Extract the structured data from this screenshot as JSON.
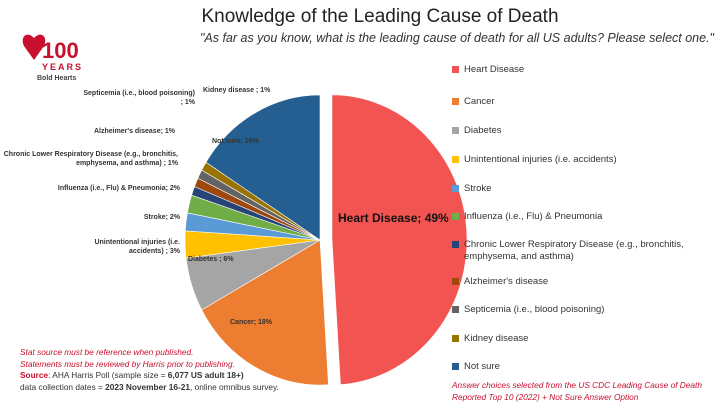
{
  "chart_data": {
    "type": "pie",
    "title": "Knowledge of the Leading Cause of Death",
    "subtitle": "\"As far as you know, what is the leading cause of death for all US adults? Please select one.\"",
    "unit": "%",
    "legend_position": "right",
    "slices": [
      {
        "name": "Heart Disease",
        "label": "Heart Disease; 49%",
        "value": 49,
        "color": "#f25451",
        "exploded": true
      },
      {
        "name": "Cancer",
        "label": "Cancer; 18%",
        "value": 18,
        "color": "#ed7d31"
      },
      {
        "name": "Diabetes",
        "label": "Diabetes ; 6%",
        "value": 6,
        "color": "#a5a5a5"
      },
      {
        "name": "Unintentional injuries (i.e. accidents)",
        "label": "Unintentional injuries (i.e. accidents) ; 3%",
        "value": 3,
        "color": "#ffc000"
      },
      {
        "name": "Stroke",
        "label": "Stroke; 2%",
        "value": 2,
        "color": "#5b9bd5"
      },
      {
        "name": "Influenza (i.e., Flu) & Pneumonia",
        "label": "Influenza (i.e., Flu) & Pneumonia; 2%",
        "value": 2,
        "color": "#70ad47"
      },
      {
        "name": "Chronic Lower Respiratory Disease (e.g., bronchitis, emphysema, and asthma)",
        "label": "Chronic Lower Respiratory Disease (e.g., bronchitis, emphysema, and asthma) ; 1%",
        "value": 1,
        "color": "#264478"
      },
      {
        "name": "Alzheimer's disease",
        "label": "Alzheimer's disease; 1%",
        "value": 1,
        "color": "#9e480e"
      },
      {
        "name": "Septicemia (i.e., blood poisoning)",
        "label": "Septicemia (i.e., blood poisoning) ; 1%",
        "value": 1,
        "color": "#636363"
      },
      {
        "name": "Kidney disease",
        "label": "Kidney disease ; 1%",
        "value": 1,
        "color": "#997300"
      },
      {
        "name": "Not sure",
        "label": "Not sure; 16%",
        "value": 16,
        "color": "#255e91"
      }
    ]
  },
  "logo": {
    "text_top": "American Heart Association",
    "number": "100",
    "years": "YEARS",
    "tagline": "Bold Hearts",
    "color": "#c8102e"
  },
  "notes": {
    "line1": "Stat source must be reference when published.",
    "line2": "Statements must be reviewed by Harris prior to publishing.",
    "source_label": "Source",
    "source_text": ": AHA Harris Poll (sample size = ",
    "sample": "6,077 US adult 18+)",
    "dates_prefix": "data collection dates = ",
    "dates": "2023 November 16-21",
    "dates_suffix": ", online omnibus survey."
  },
  "footnote": "Answer choices selected from the US CDC Leading Cause of Death Reported Top 10 (2022) + Not Sure Answer Option"
}
